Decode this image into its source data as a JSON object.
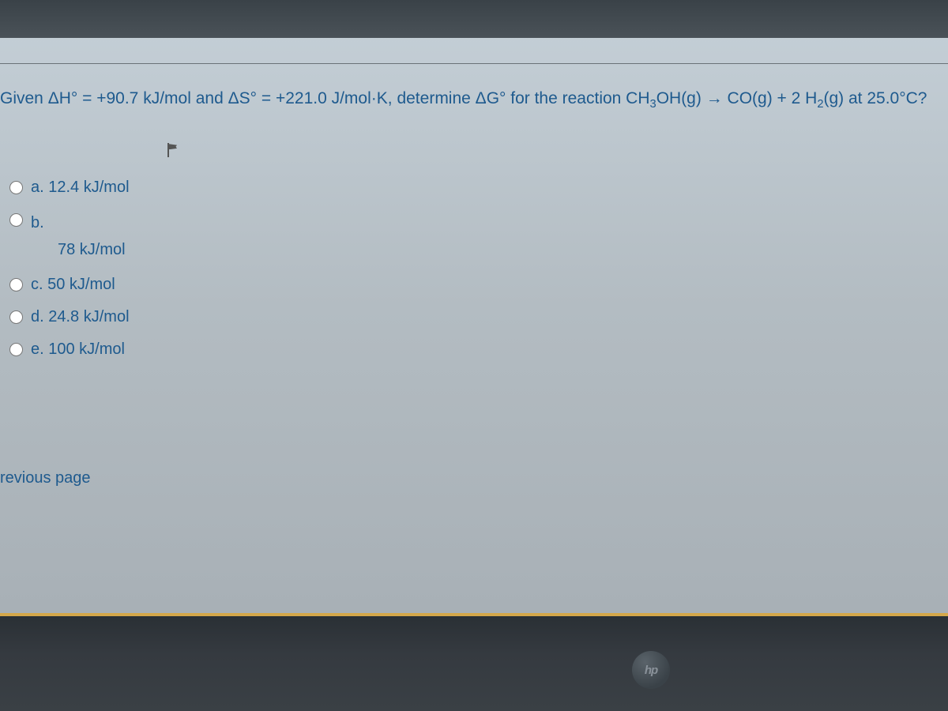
{
  "question": {
    "prefix": "Given ΔH° = ",
    "dh_value": "+90.7 kJ/mol",
    "mid1": " and ΔS° = ",
    "ds_value": "+221.0 J/mol·K",
    "mid2": ", determine ΔG° for the reaction CH",
    "sub1": "3",
    "mid3": "OH(g) → CO(g) + 2 H",
    "sub2": "2",
    "tail": "(g) at 25.0°C?"
  },
  "options": [
    {
      "letter": "a.",
      "text": "12.4 kJ/mol"
    },
    {
      "letter": "b.",
      "text": "78 kJ/mol"
    },
    {
      "letter": "c.",
      "text": "50 kJ/mol"
    },
    {
      "letter": "d.",
      "text": "24.8 kJ/mol"
    },
    {
      "letter": "e.",
      "text": "100 kJ/mol"
    }
  ],
  "nav": {
    "previous": "revious page"
  },
  "logo": {
    "text": "hp"
  },
  "colors": {
    "link": "#1e5a8e",
    "screen_bg_top": "#c5d0d8",
    "screen_bg_bottom": "#a8b0b6",
    "accent_bar": "#d4a74a",
    "bezel": "#353a40"
  }
}
